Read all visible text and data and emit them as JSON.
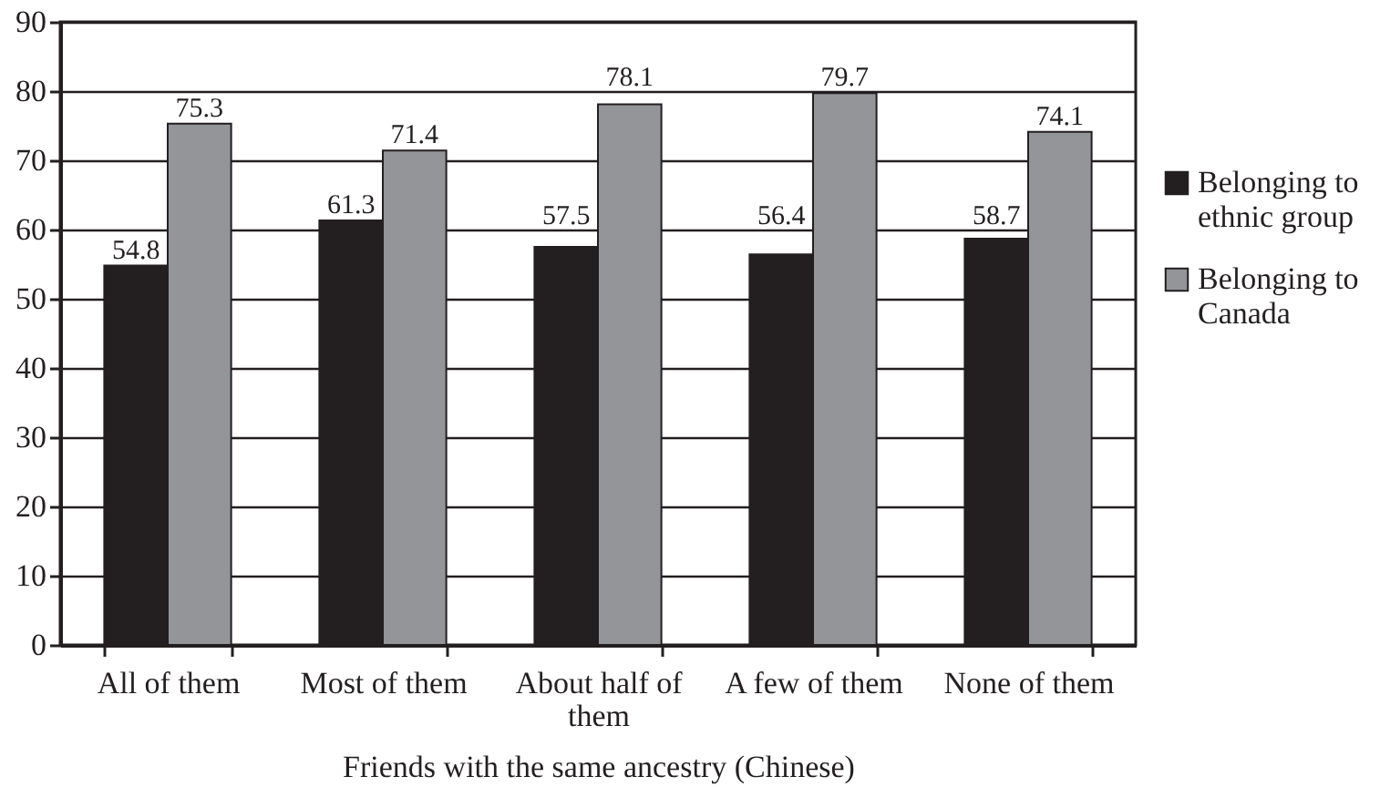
{
  "chart_data": {
    "type": "bar",
    "xlabel": "Friends with the same ancestry (Chinese)",
    "categories": [
      "All of them",
      "Most of them",
      "About half of them",
      "A few of them",
      "None of them"
    ],
    "series": [
      {
        "name": "Belonging to ethnic group",
        "color": "#231f20",
        "values": [
          54.8,
          61.3,
          57.5,
          56.4,
          58.7
        ]
      },
      {
        "name": "Belonging to Canada",
        "color": "#939598",
        "values": [
          75.3,
          71.4,
          78.1,
          79.7,
          74.1
        ]
      }
    ],
    "ylim": [
      0,
      90
    ],
    "yticks": [
      0,
      10,
      20,
      30,
      40,
      50,
      60,
      70,
      80,
      90
    ],
    "grid": "y",
    "legend": "right",
    "data_labels": true
  }
}
